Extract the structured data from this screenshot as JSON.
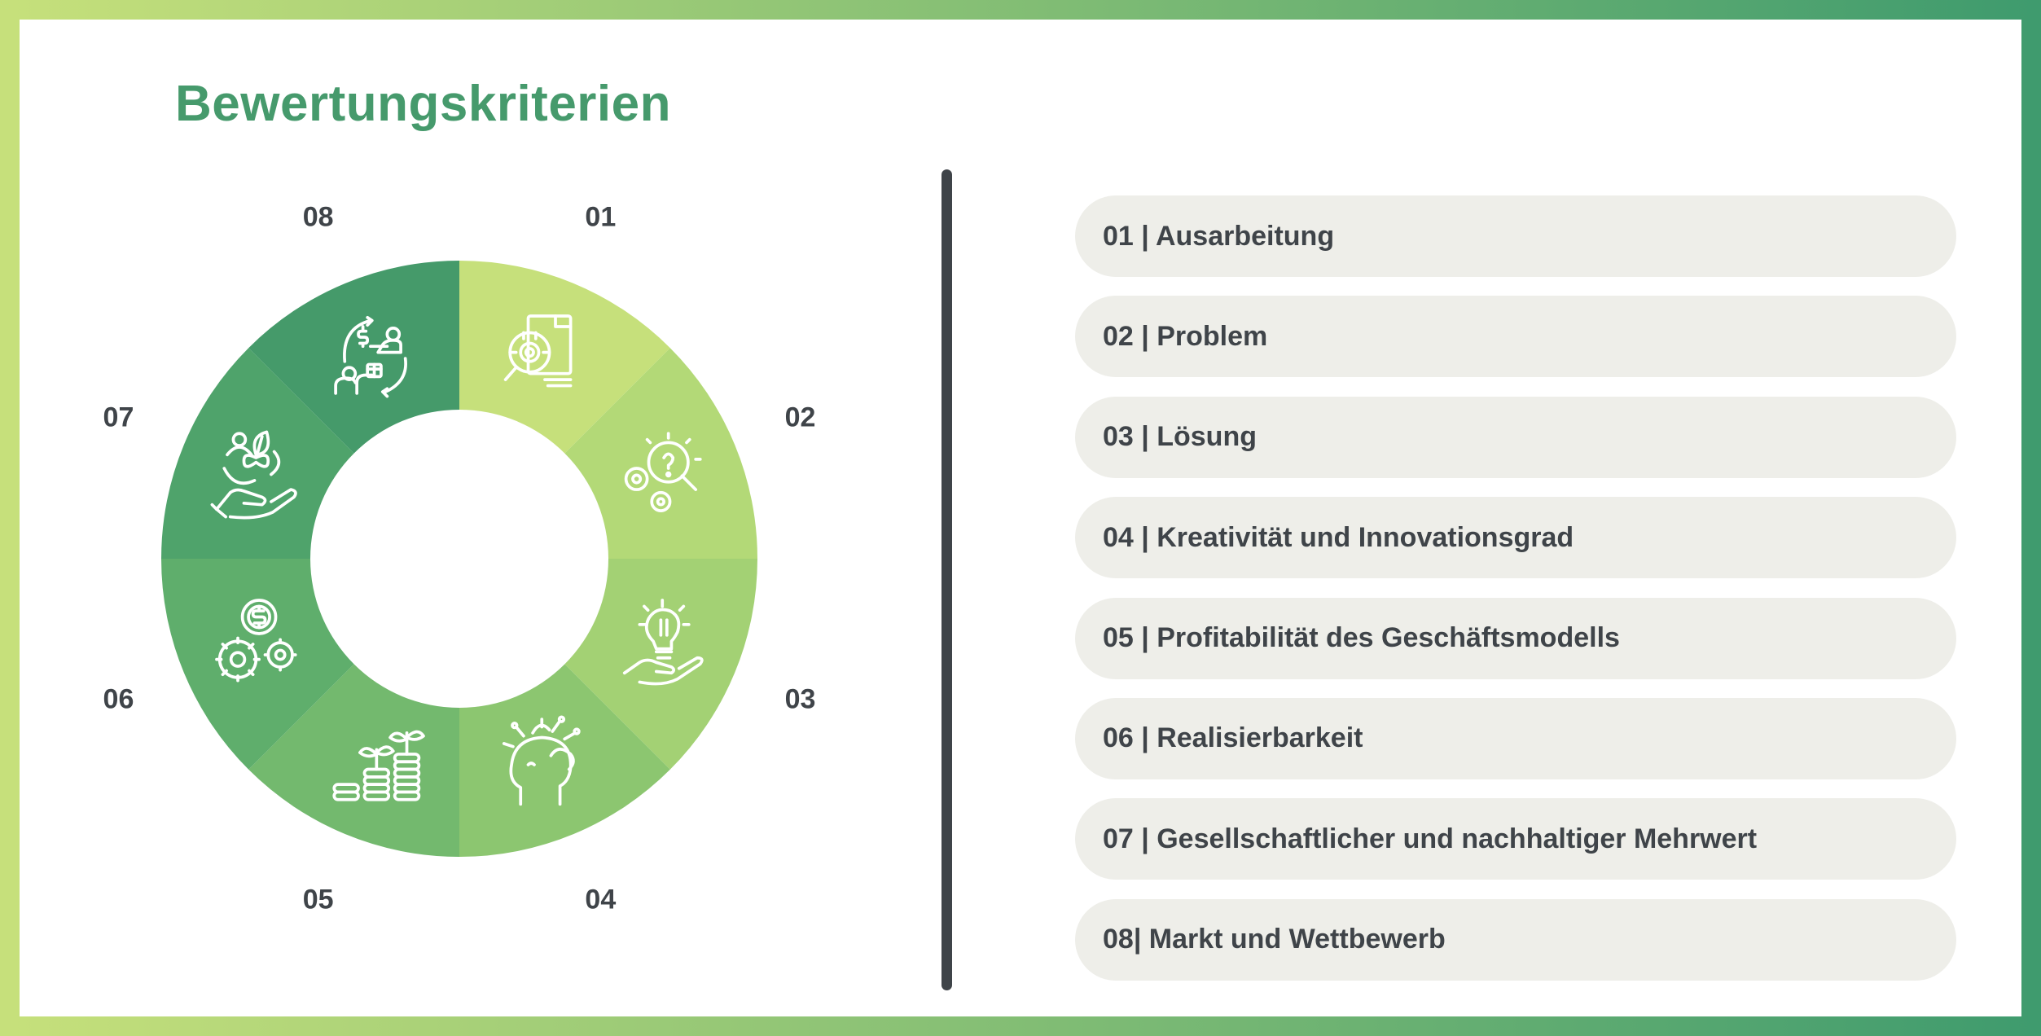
{
  "title": "Bewertungskriterien",
  "colors": {
    "title": "#469a6c",
    "text": "#3f4449",
    "pill_bg": "#eeeee9",
    "border_start": "#c6e07b",
    "border_end": "#3f9b6e",
    "segments": [
      "#c6e07b",
      "#b3d977",
      "#a3d174",
      "#8cc670",
      "#73b96e",
      "#5fae6c",
      "#4fa36b",
      "#459a6a"
    ]
  },
  "segments": [
    {
      "number": "01",
      "icon": "document-gear-search-icon"
    },
    {
      "number": "02",
      "icon": "gears-question-search-icon"
    },
    {
      "number": "03",
      "icon": "lightbulb-hand-icon"
    },
    {
      "number": "04",
      "icon": "head-creativity-icon"
    },
    {
      "number": "05",
      "icon": "coins-plants-growth-icon"
    },
    {
      "number": "06",
      "icon": "dollar-gears-icon"
    },
    {
      "number": "07",
      "icon": "hand-heart-leaf-icon"
    },
    {
      "number": "08",
      "icon": "exchange-money-product-icon"
    }
  ],
  "criteria": [
    "01 | Ausarbeitung",
    "02 | Problem",
    "03 | Lösung",
    "04 | Kreativität und Innovationsgrad",
    "05 | Profitabilität des Geschäftsmodells",
    "06 | Realisierbarkeit",
    "07 | Gesellschaftlicher und nachhaltiger Mehrwert",
    "08| Markt und Wettbewerb"
  ]
}
